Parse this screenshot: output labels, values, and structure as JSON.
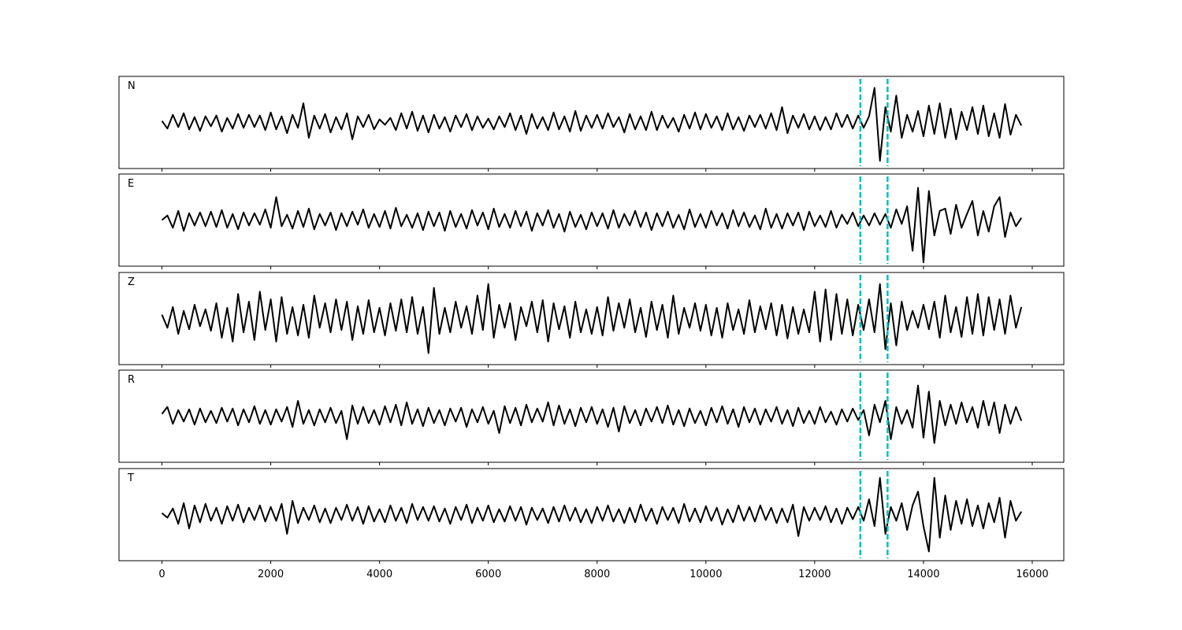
{
  "chart_data": {
    "type": "line",
    "x": [
      0,
      100,
      200,
      300,
      400,
      500,
      600,
      700,
      800,
      900,
      1000,
      1100,
      1200,
      1300,
      1400,
      1500,
      1600,
      1700,
      1800,
      1900,
      2000,
      2100,
      2200,
      2300,
      2400,
      2500,
      2600,
      2700,
      2800,
      2900,
      3000,
      3100,
      3200,
      3300,
      3400,
      3500,
      3600,
      3700,
      3800,
      3900,
      4000,
      4100,
      4200,
      4300,
      4400,
      4500,
      4600,
      4700,
      4800,
      4900,
      5000,
      5100,
      5200,
      5300,
      5400,
      5500,
      5600,
      5700,
      5800,
      5900,
      6000,
      6100,
      6200,
      6300,
      6400,
      6500,
      6600,
      6700,
      6800,
      6900,
      7000,
      7100,
      7200,
      7300,
      7400,
      7500,
      7600,
      7700,
      7800,
      7900,
      8000,
      8100,
      8200,
      8300,
      8400,
      8500,
      8600,
      8700,
      8800,
      8900,
      9000,
      9100,
      9200,
      9300,
      9400,
      9500,
      9600,
      9700,
      9800,
      9900,
      10000,
      10100,
      10200,
      10300,
      10400,
      10500,
      10600,
      10700,
      10800,
      10900,
      11000,
      11100,
      11200,
      11300,
      11400,
      11500,
      11600,
      11700,
      11800,
      11900,
      12000,
      12100,
      12200,
      12300,
      12400,
      12500,
      12600,
      12700,
      12800,
      12900,
      13000,
      13100,
      13200,
      13300,
      13400,
      13500,
      13600,
      13700,
      13800,
      13900,
      14000,
      14100,
      14200,
      14300,
      14400,
      14500,
      14600,
      14700,
      14800,
      14900,
      15000,
      15100,
      15200,
      15300,
      15400,
      15500,
      15600,
      15700,
      15800
    ],
    "series": [
      {
        "name": "N",
        "color": "#000000",
        "values": [
          2,
          -8,
          10,
          -6,
          12,
          -9,
          7,
          -11,
          8,
          -5,
          9,
          -12,
          6,
          -8,
          11,
          -7,
          10,
          -6,
          9,
          -10,
          13,
          -9,
          8,
          -14,
          10,
          -7,
          25,
          -20,
          9,
          -8,
          11,
          -13,
          7,
          -9,
          12,
          -22,
          8,
          -6,
          10,
          -9,
          4,
          -3,
          6,
          -10,
          12,
          -8,
          14,
          -11,
          9,
          -13,
          10,
          -8,
          7,
          -12,
          9,
          -6,
          11,
          -10,
          8,
          -7,
          5,
          -9,
          8,
          -6,
          12,
          -10,
          9,
          -15,
          11,
          -8,
          7,
          -10,
          13,
          -9,
          8,
          -12,
          15,
          -11,
          9,
          -7,
          10,
          -8,
          12,
          -6,
          7,
          -13,
          11,
          -9,
          8,
          -10,
          14,
          -10,
          9,
          -7,
          6,
          -12,
          10,
          -8,
          13,
          -9,
          11,
          -7,
          8,
          -10,
          12,
          -9,
          7,
          -11,
          9,
          -6,
          10,
          -8,
          12,
          -10,
          20,
          -14,
          9,
          -7,
          11,
          -9,
          8,
          -10,
          7,
          -9,
          12,
          -6,
          10,
          -8,
          9,
          -7,
          8,
          45,
          -50,
          20,
          -12,
          35,
          -20,
          10,
          -12,
          15,
          -18,
          22,
          -15,
          25,
          -20,
          18,
          -22,
          14,
          -10,
          20,
          -15,
          22,
          -18,
          12,
          -20,
          24,
          -16,
          10,
          -4
        ]
      },
      {
        "name": "E",
        "color": "#000000",
        "values": [
          0,
          6,
          -10,
          12,
          -14,
          9,
          -7,
          10,
          -8,
          11,
          -9,
          13,
          -10,
          8,
          -12,
          10,
          -7,
          9,
          -6,
          14,
          -10,
          30,
          -8,
          7,
          -11,
          12,
          -9,
          15,
          -12,
          8,
          -7,
          10,
          -13,
          9,
          -8,
          11,
          -6,
          14,
          -10,
          8,
          -9,
          12,
          -11,
          16,
          -8,
          7,
          -10,
          9,
          -13,
          11,
          -8,
          10,
          -14,
          12,
          -9,
          8,
          -11,
          13,
          -7,
          10,
          -12,
          15,
          -9,
          8,
          -10,
          12,
          -8,
          11,
          -14,
          9,
          -7,
          13,
          -10,
          8,
          -15,
          11,
          -9,
          7,
          -12,
          10,
          -8,
          9,
          -11,
          13,
          -10,
          8,
          -7,
          12,
          -9,
          10,
          -13,
          9,
          -8,
          11,
          -10,
          7,
          -12,
          14,
          -9,
          8,
          -10,
          12,
          -7,
          9,
          -11,
          13,
          -8,
          10,
          -9,
          6,
          -12,
          15,
          -10,
          8,
          -11,
          9,
          -7,
          10,
          -13,
          11,
          -8,
          6,
          -9,
          12,
          -10,
          7,
          -5,
          10,
          -8,
          6,
          -7,
          9,
          -6,
          8,
          -10,
          14,
          -5,
          18,
          -40,
          42,
          -55,
          38,
          -20,
          12,
          15,
          -18,
          20,
          -10,
          8,
          25,
          -20,
          12,
          -15,
          18,
          30,
          -22,
          10,
          -8,
          3
        ]
      },
      {
        "name": "Z",
        "color": "#000000",
        "values": [
          5,
          -12,
          15,
          -20,
          10,
          -14,
          18,
          -10,
          12,
          -16,
          20,
          -25,
          14,
          -30,
          32,
          -18,
          22,
          -28,
          35,
          -15,
          25,
          -30,
          28,
          -20,
          15,
          -22,
          18,
          -25,
          30,
          -12,
          20,
          -18,
          25,
          -15,
          22,
          -28,
          16,
          -20,
          24,
          -18,
          14,
          -22,
          20,
          -16,
          25,
          -18,
          28,
          -20,
          15,
          -45,
          40,
          -20,
          14,
          -18,
          22,
          -12,
          16,
          -20,
          30,
          -15,
          45,
          -25,
          18,
          -12,
          20,
          -28,
          15,
          -10,
          22,
          -18,
          24,
          -30,
          20,
          -14,
          16,
          -25,
          22,
          -18,
          12,
          -20,
          15,
          -22,
          28,
          -16,
          20,
          -12,
          25,
          -18,
          14,
          -24,
          22,
          -15,
          18,
          -25,
          30,
          -20,
          14,
          -12,
          20,
          -16,
          18,
          -22,
          14,
          -25,
          20,
          -15,
          12,
          -20,
          24,
          -18,
          16,
          -14,
          20,
          -22,
          18,
          -26,
          15,
          -20,
          12,
          -18,
          35,
          -30,
          38,
          -28,
          32,
          -20,
          25,
          -22,
          18,
          -15,
          25,
          -18,
          45,
          -40,
          20,
          -35,
          22,
          -15,
          10,
          -12,
          18,
          -14,
          22,
          -25,
          30,
          -18,
          15,
          -24,
          28,
          -20,
          32,
          -22,
          28,
          -15,
          25,
          -20,
          30,
          -12,
          15
        ]
      },
      {
        "name": "R",
        "color": "#000000",
        "values": [
          3,
          12,
          -10,
          8,
          -7,
          9,
          -11,
          10,
          -8,
          7,
          -9,
          11,
          -7,
          10,
          -12,
          9,
          -8,
          13,
          -10,
          8,
          -11,
          9,
          -7,
          12,
          -14,
          20,
          -10,
          8,
          -12,
          9,
          -8,
          11,
          -9,
          7,
          -30,
          14,
          -10,
          12,
          -9,
          8,
          -11,
          13,
          -8,
          15,
          -12,
          18,
          -10,
          9,
          -13,
          11,
          -9,
          8,
          -12,
          10,
          -7,
          11,
          -14,
          9,
          -8,
          12,
          -10,
          7,
          -22,
          13,
          -9,
          11,
          -12,
          15,
          -8,
          10,
          -7,
          18,
          -12,
          14,
          -10,
          9,
          -13,
          11,
          -8,
          12,
          -10,
          9,
          -14,
          11,
          -20,
          13,
          -9,
          8,
          -12,
          10,
          -7,
          12,
          -9,
          14,
          -11,
          8,
          -13,
          10,
          -9,
          7,
          -12,
          11,
          -8,
          13,
          -10,
          9,
          -14,
          12,
          -8,
          10,
          -11,
          9,
          -7,
          12,
          -10,
          8,
          -13,
          11,
          -9,
          7,
          -10,
          12,
          -8,
          6,
          -11,
          9,
          -7,
          10,
          -5,
          8,
          -25,
          15,
          -8,
          20,
          -30,
          12,
          -10,
          8,
          -15,
          40,
          -28,
          32,
          -35,
          20,
          -12,
          15,
          -10,
          18,
          -8,
          12,
          -15,
          20,
          -12,
          18,
          -22,
          15,
          -10,
          12,
          -6
        ]
      },
      {
        "name": "T",
        "color": "#000000",
        "values": [
          2,
          -4,
          8,
          -12,
          15,
          -18,
          12,
          -10,
          14,
          -8,
          9,
          -12,
          11,
          -8,
          13,
          -10,
          9,
          -7,
          12,
          -9,
          10,
          -8,
          14,
          -25,
          18,
          -11,
          9,
          -7,
          12,
          -10,
          8,
          -11,
          9,
          -7,
          13,
          -8,
          10,
          -12,
          11,
          -9,
          7,
          -10,
          12,
          -8,
          9,
          -11,
          14,
          -7,
          10,
          -8,
          11,
          -9,
          8,
          -12,
          10,
          -7,
          13,
          -11,
          9,
          -8,
          12,
          -10,
          7,
          -9,
          11,
          -8,
          10,
          -13,
          9,
          -7,
          8,
          -11,
          10,
          -9,
          12,
          -8,
          9,
          -10,
          7,
          -11,
          10,
          -8,
          12,
          -9,
          7,
          -11,
          9,
          -10,
          13,
          -8,
          8,
          -12,
          10,
          -7,
          9,
          -11,
          14,
          -9,
          8,
          -10,
          11,
          -8,
          9,
          -13,
          7,
          -10,
          12,
          -8,
          10,
          -9,
          12,
          -7,
          9,
          -11,
          8,
          -10,
          13,
          -28,
          10,
          -8,
          9,
          -7,
          11,
          -10,
          8,
          -12,
          9,
          -6,
          10,
          -8,
          20,
          -15,
          48,
          -25,
          10,
          -8,
          15,
          -20,
          12,
          30,
          -15,
          -48,
          48,
          -30,
          25,
          -20,
          18,
          -12,
          20,
          -15,
          12,
          -18,
          15,
          -10,
          22,
          -30,
          18,
          -8,
          4
        ]
      }
    ],
    "xlim": [
      -790,
      16580
    ],
    "xticks": [
      0,
      2000,
      4000,
      6000,
      8000,
      10000,
      12000,
      14000,
      16000
    ],
    "ylim": [
      -60,
      60
    ],
    "vlines": [
      12840,
      13340
    ],
    "vline_color": "#00bfbf"
  }
}
